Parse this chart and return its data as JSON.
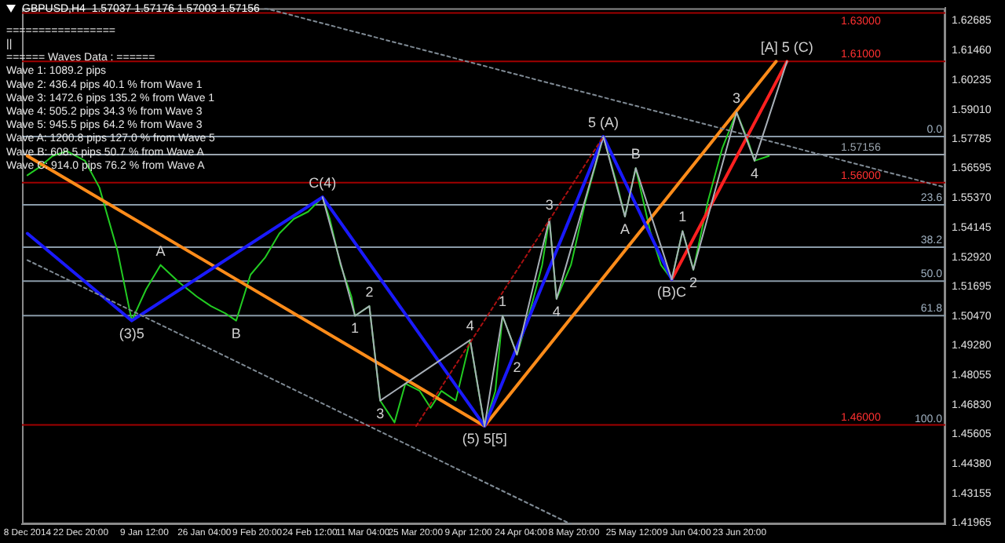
{
  "chart_data": {
    "type": "line",
    "title": "GBPUSD,H4  1.57037 1.57176 1.57003 1.57156",
    "xlim": [
      "2014-12-06T12:00",
      "2015-08-20"
    ],
    "xticks": [
      {
        "value": "2014-12-08T00:00",
        "label": "8 Dec 2014"
      },
      {
        "value": "2014-12-22T20:00",
        "label": "22 Dec 20:00"
      },
      {
        "value": "2015-01-09T12:00",
        "label": "9 Jan 12:00"
      },
      {
        "value": "2015-01-26T04:00",
        "label": "26 Jan 04:00"
      },
      {
        "value": "2015-02-09T20:00",
        "label": "9 Feb 20:00"
      },
      {
        "value": "2015-02-24T12:00",
        "label": "24 Feb 12:00"
      },
      {
        "value": "2015-03-11T04:00",
        "label": "11 Mar 04:00"
      },
      {
        "value": "2015-03-25T20:00",
        "label": "25 Mar 20:00"
      },
      {
        "value": "2015-04-09T12:00",
        "label": "9 Apr 12:00"
      },
      {
        "value": "2015-04-24T04:00",
        "label": "24 Apr 04:00"
      },
      {
        "value": "2015-05-08T20:00",
        "label": "8 May 20:00"
      },
      {
        "value": "2015-05-25T12:00",
        "label": "25 May 12:00"
      },
      {
        "value": "2015-06-09T04:00",
        "label": "9 Jun 04:00"
      },
      {
        "value": "2015-06-23T20:00",
        "label": "23 Jun 20:00"
      }
    ],
    "ylim": [
      1.419,
      1.632
    ],
    "yticks": [
      1.62685,
      {
        "value": 1.6146,
        "label": "1.61460"
      },
      1.60235,
      {
        "value": 1.5901,
        "label": "1.59010"
      },
      1.57785,
      1.56595,
      {
        "value": 1.5537,
        "label": "1.55370"
      },
      1.54145,
      {
        "value": 1.5292,
        "label": "1.52920"
      },
      1.51695,
      {
        "value": 1.5047,
        "label": "1.50470"
      },
      {
        "value": 1.4928,
        "label": "1.49280"
      },
      1.48055,
      {
        "value": 1.4683,
        "label": "1.46830"
      },
      1.45605,
      {
        "value": 1.4438,
        "label": "1.44380"
      },
      1.43155,
      1.41965
    ],
    "grid": false,
    "legend": false,
    "series": [
      {
        "color": "#7f8a94",
        "line_style": "dotted",
        "x": [
          "2015-02-12",
          "2015-08-20"
        ],
        "values": [
          1.632,
          1.558
        ]
      },
      {
        "color": "#7f8a94",
        "line_style": "dotted",
        "x": [
          "2014-12-08",
          "2015-05-08"
        ],
        "values": [
          1.528,
          1.419
        ]
      },
      {
        "color": "#aa1111",
        "line_style": "dotted",
        "x": [
          "2015-03-26",
          "2015-05-17"
        ],
        "values": [
          1.4595,
          1.579
        ]
      },
      {
        "color": "#a8b0b8",
        "x": [
          "2015-02-28",
          "2015-03-09",
          "2015-03-13",
          "2015-03-16",
          "2015-04-10",
          "2015-04-14"
        ],
        "values": [
          1.554,
          1.505,
          1.509,
          1.47,
          1.495,
          1.4595
        ]
      },
      {
        "color": "#a8b0b8",
        "x": [
          "2015-04-14",
          "2015-04-19",
          "2015-04-23",
          "2015-05-02",
          "2015-05-04",
          "2015-05-17",
          "2015-05-23",
          "2015-05-26",
          "2015-06-05"
        ],
        "values": [
          1.4595,
          1.505,
          1.489,
          1.545,
          1.512,
          1.579,
          1.546,
          1.566,
          1.52
        ]
      },
      {
        "color": "#a8b0b8",
        "x": [
          "2015-06-05",
          "2015-06-08",
          "2015-06-11",
          "2015-06-23",
          "2015-06-28",
          "2015-07-07"
        ],
        "values": [
          1.52,
          1.54,
          1.524,
          1.589,
          1.569,
          1.61
        ]
      },
      {
        "color": "#1a1aff",
        "x": [
          "2014-12-08",
          "2015-01-06",
          "2015-02-28",
          "2015-04-14",
          "2015-05-17",
          "2015-06-05"
        ],
        "values": [
          1.539,
          1.503,
          1.554,
          1.4595,
          1.579,
          1.52
        ]
      },
      {
        "color": "#ff8c1a",
        "x": [
          "2014-12-08",
          "2015-04-14",
          "2015-07-04"
        ],
        "values": [
          1.571,
          1.4595,
          1.61
        ]
      },
      {
        "color": "#ff2020",
        "x": [
          "2015-06-05",
          "2015-07-07"
        ],
        "values": [
          1.52,
          1.61
        ]
      },
      {
        "color": "#22cc22",
        "x": [
          "2014-12-08",
          "2014-12-11",
          "2014-12-15",
          "2014-12-19",
          "2014-12-24",
          "2014-12-28",
          "2015-01-02",
          "2015-01-06",
          "2015-01-10",
          "2015-01-14",
          "2015-01-19",
          "2015-01-24",
          "2015-01-28",
          "2015-02-01",
          "2015-02-04",
          "2015-02-08",
          "2015-02-12",
          "2015-02-16",
          "2015-02-20",
          "2015-02-24",
          "2015-02-28",
          "2015-03-02",
          "2015-03-05",
          "2015-03-08",
          "2015-03-09",
          "2015-03-13",
          "2015-03-16",
          "2015-03-20",
          "2015-03-23",
          "2015-03-27",
          "2015-03-30",
          "2015-04-02",
          "2015-04-06",
          "2015-04-10",
          "2015-04-12",
          "2015-04-14",
          "2015-04-17",
          "2015-04-19",
          "2015-04-23",
          "2015-04-27",
          "2015-04-30",
          "2015-05-02",
          "2015-05-04",
          "2015-05-08",
          "2015-05-12",
          "2015-05-17",
          "2015-05-21",
          "2015-05-23",
          "2015-05-26",
          "2015-05-30",
          "2015-06-02",
          "2015-06-05",
          "2015-06-08",
          "2015-06-11",
          "2015-06-15",
          "2015-06-19",
          "2015-06-23",
          "2015-06-26",
          "2015-06-28",
          "2015-07-02"
        ],
        "values": [
          1.563,
          1.566,
          1.571,
          1.573,
          1.569,
          1.558,
          1.532,
          1.503,
          1.516,
          1.526,
          1.519,
          1.513,
          1.509,
          1.506,
          1.503,
          1.522,
          1.529,
          1.539,
          1.545,
          1.548,
          1.554,
          1.545,
          1.526,
          1.513,
          1.505,
          1.509,
          1.47,
          1.461,
          1.477,
          1.474,
          1.467,
          1.474,
          1.47,
          1.495,
          1.477,
          1.4595,
          1.474,
          1.505,
          1.489,
          1.509,
          1.526,
          1.545,
          1.512,
          1.526,
          1.552,
          1.579,
          1.558,
          1.546,
          1.566,
          1.54,
          1.526,
          1.52,
          1.54,
          1.524,
          1.552,
          1.574,
          1.589,
          1.578,
          1.569,
          1.571
        ]
      }
    ],
    "ref_lines": [
      {
        "axis": "y",
        "value": 1.63,
        "label": "1.63000",
        "color": "#a00000"
      },
      {
        "axis": "y",
        "value": 1.61,
        "label": "1.61000",
        "color": "#a00000"
      },
      {
        "axis": "y",
        "value": 1.56,
        "label": "1.56000",
        "color": "#a00000"
      },
      {
        "axis": "y",
        "value": 1.46,
        "label": "1.46000",
        "color": "#a00000"
      },
      {
        "axis": "y",
        "value": 1.57156,
        "label": "1.57156",
        "color": "#9aa4ae"
      },
      {
        "axis": "y",
        "value": 1.579,
        "color": "#8a9aa8"
      },
      {
        "axis": "y",
        "value": 1.5508,
        "color": "#8a9aa8"
      },
      {
        "axis": "y",
        "value": 1.5333,
        "color": "#8a9aa8"
      },
      {
        "axis": "y",
        "value": 1.5193,
        "color": "#8a9aa8"
      },
      {
        "axis": "y",
        "value": 1.5051,
        "color": "#8a9aa8"
      }
    ],
    "annotations": [
      "=================",
      "||",
      "====== Waves Data : ======",
      "Wave 1: 1089.2 pips",
      "Wave 2: 436.4 pips 40.1 % from Wave 1",
      "Wave 3: 1472.6 pips 135.2 % from Wave 1",
      "Wave 4: 505.2 pips 34.3 % from Wave 3",
      "Wave 5: 945.5 pips 64.2 % from Wave 3",
      "Wave A: 1200.8 pips 127.0 % from Wave 5",
      "Wave B: 608.5 pips 50.7 % from Wave A",
      "Wave C: 914.0 pips 76.2 % from Wave A",
      {
        "text": "0.0",
        "x": "2015-08-20",
        "y": 1.579
      },
      {
        "text": "23.6",
        "x": "2015-08-20",
        "y": 1.5508
      },
      {
        "text": "38.2",
        "x": "2015-08-20",
        "y": 1.5333
      },
      {
        "text": "50.0",
        "x": "2015-08-20",
        "y": 1.5193
      },
      {
        "text": "61.8",
        "x": "2015-08-20",
        "y": 1.5051
      },
      {
        "text": "100.0",
        "x": "2015-08-20",
        "y": 1.4595
      },
      {
        "text": "(3)5",
        "x": "2015-01-06",
        "y": 1.503
      },
      {
        "text": "A",
        "x": "2015-01-14",
        "y": 1.526
      },
      {
        "text": "B",
        "x": "2015-02-04",
        "y": 1.503
      },
      {
        "text": "C(4)",
        "x": "2015-02-28",
        "y": 1.554
      },
      {
        "text": "1",
        "x": "2015-03-09",
        "y": 1.505
      },
      {
        "text": "2",
        "x": "2015-03-13",
        "y": 1.509
      },
      {
        "text": "3",
        "x": "2015-03-16",
        "y": 1.47
      },
      {
        "text": "4",
        "x": "2015-04-10",
        "y": 1.495
      },
      {
        "text": "(5) 5[5]",
        "x": "2015-04-14",
        "y": 1.4595
      },
      {
        "text": "1",
        "x": "2015-04-19",
        "y": 1.505
      },
      {
        "text": "2",
        "x": "2015-04-23",
        "y": 1.489
      },
      {
        "text": "3",
        "x": "2015-05-02",
        "y": 1.545
      },
      {
        "text": "4",
        "x": "2015-05-04",
        "y": 1.512
      },
      {
        "text": "5 (A)",
        "x": "2015-05-17",
        "y": 1.579
      },
      {
        "text": "A",
        "x": "2015-05-23",
        "y": 1.546
      },
      {
        "text": "B",
        "x": "2015-05-26",
        "y": 1.566
      },
      {
        "text": "(B)C",
        "x": "2015-06-05",
        "y": 1.52
      },
      {
        "text": "1",
        "x": "2015-06-08",
        "y": 1.54
      },
      {
        "text": "2",
        "x": "2015-06-11",
        "y": 1.524
      },
      {
        "text": "3",
        "x": "2015-06-23",
        "y": 1.589
      },
      {
        "text": "4",
        "x": "2015-06-28",
        "y": 1.569
      },
      {
        "text": "[A] 5 (C)",
        "x": "2015-07-07",
        "y": 1.61
      }
    ]
  }
}
